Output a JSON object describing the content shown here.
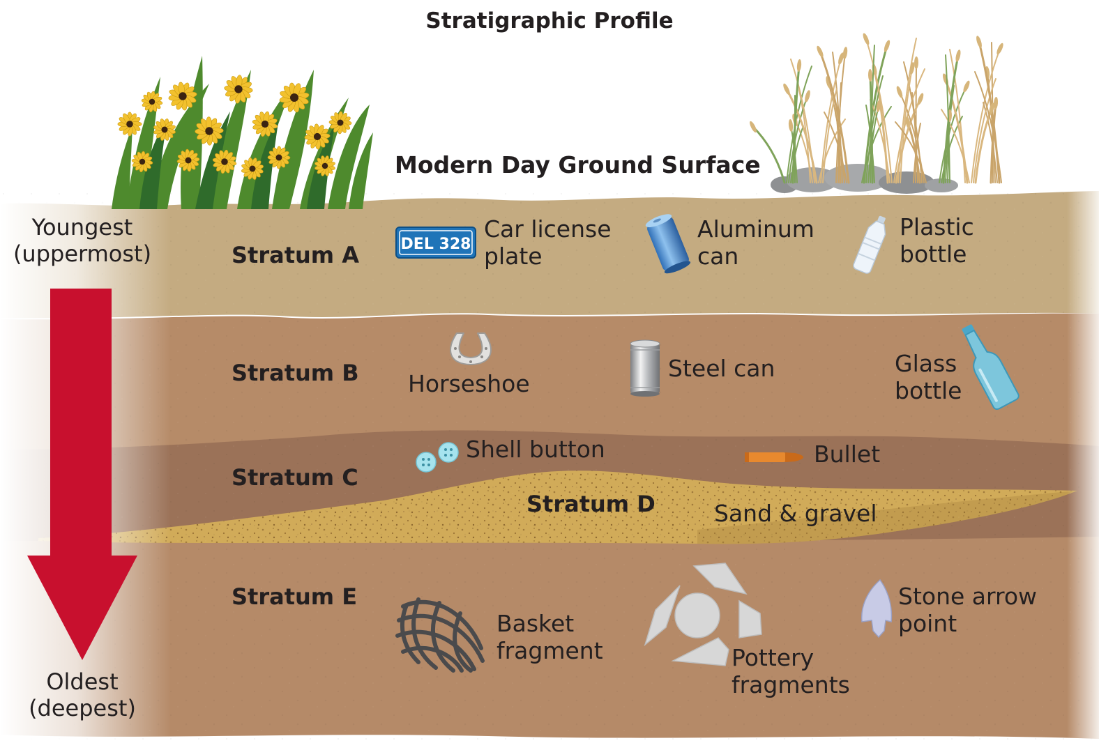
{
  "title": "Stratigraphic Profile",
  "surface_label": "Modern Day Ground Surface",
  "age_scale": {
    "top_label": "Youngest\n(uppermost)",
    "bottom_label": "Oldest\n(deepest)",
    "arrow_color": "#c8102e"
  },
  "strata": [
    {
      "id": "A",
      "label": "Stratum A",
      "color": "#c4ab81"
    },
    {
      "id": "B",
      "label": "Stratum B",
      "color": "#b68b68"
    },
    {
      "id": "C",
      "label": "Stratum C",
      "color": "#9b7258"
    },
    {
      "id": "D",
      "label": "Stratum D",
      "color": "#d1ab59",
      "description": "Sand & gravel"
    },
    {
      "id": "E",
      "label": "Stratum E",
      "color": "#b58a68"
    }
  ],
  "artifacts": {
    "A": [
      {
        "label": "Car license\nplate",
        "icon": "license-plate-icon",
        "icon_text": "DEL 328"
      },
      {
        "label": "Aluminum\ncan",
        "icon": "aluminum-can-icon"
      },
      {
        "label": "Plastic\nbottle",
        "icon": "plastic-bottle-icon"
      }
    ],
    "B": [
      {
        "label": "Horseshoe",
        "icon": "horseshoe-icon"
      },
      {
        "label": "Steel can",
        "icon": "steel-can-icon"
      },
      {
        "label": "Glass\nbottle",
        "icon": "glass-bottle-icon"
      }
    ],
    "C": [
      {
        "label": "Shell button",
        "icon": "shell-button-icon"
      },
      {
        "label": "Bullet",
        "icon": "bullet-icon"
      }
    ],
    "E": [
      {
        "label": "Basket\nfragment",
        "icon": "basket-fragment-icon"
      },
      {
        "label": "Pottery\nfragments",
        "icon": "pottery-fragments-icon"
      },
      {
        "label": "Stone arrow\npoint",
        "icon": "stone-arrow-point-icon"
      }
    ]
  },
  "vegetation": [
    {
      "icon": "flowers-icon",
      "color": "#f2c12e"
    },
    {
      "icon": "grass-icon",
      "color": "#d9b77f"
    },
    {
      "icon": "rocks-icon",
      "color": "#9fa1a3"
    }
  ]
}
